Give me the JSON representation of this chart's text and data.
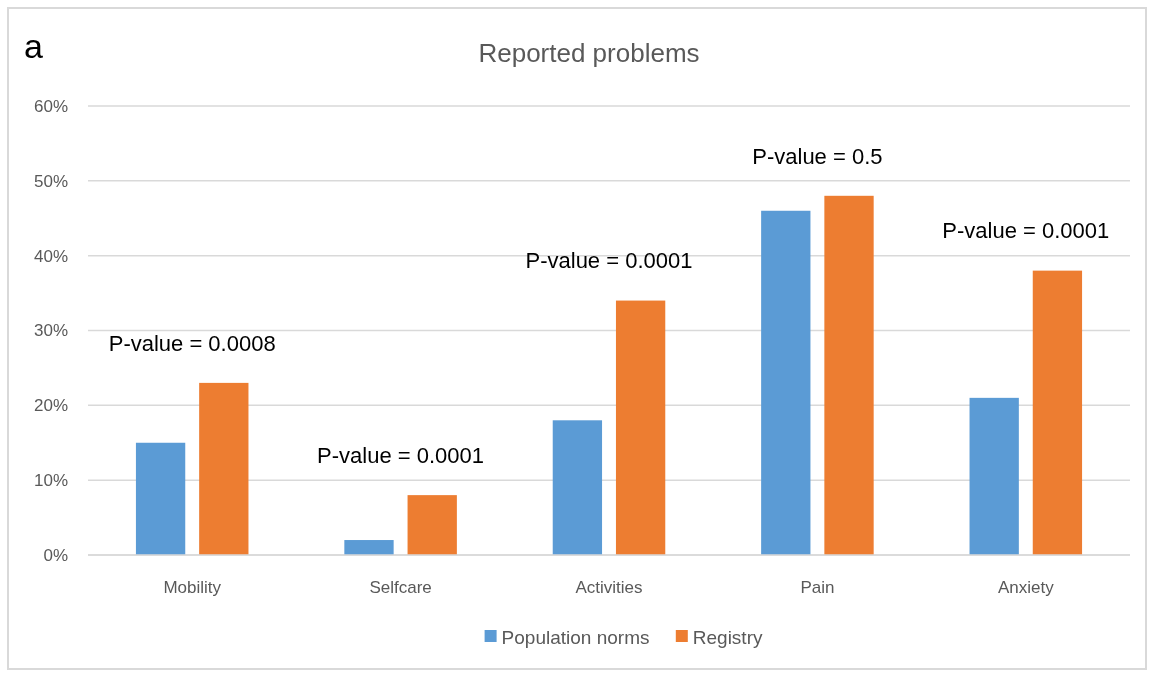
{
  "chart_data": {
    "type": "bar",
    "title": "Reported problems",
    "categories": [
      "Mobility",
      "Selfcare",
      "Activities",
      "Pain",
      "Anxiety"
    ],
    "series": [
      {
        "name": "Population norms",
        "color": "#5b9bd5",
        "values": [
          15,
          2,
          18,
          46,
          21
        ]
      },
      {
        "name": "Registry",
        "color": "#ed7d31",
        "values": [
          23,
          8,
          34,
          48,
          38
        ]
      }
    ],
    "ylim": [
      0,
      60
    ],
    "yticks": [
      {
        "value": 0,
        "label": "0%"
      },
      {
        "value": 10,
        "label": "10%"
      },
      {
        "value": 20,
        "label": "20%"
      },
      {
        "value": 30,
        "label": "30%"
      },
      {
        "value": 40,
        "label": "40%"
      },
      {
        "value": 50,
        "label": "50%"
      },
      {
        "value": 60,
        "label": "60%"
      }
    ],
    "grid": "y",
    "legend": "bottom",
    "annotations": [
      "a",
      "P-value = 0.0008",
      "P-value = 0.0001",
      "P-value = 0.0001",
      "P-value = 0.5",
      "P-value = 0.0001"
    ]
  }
}
